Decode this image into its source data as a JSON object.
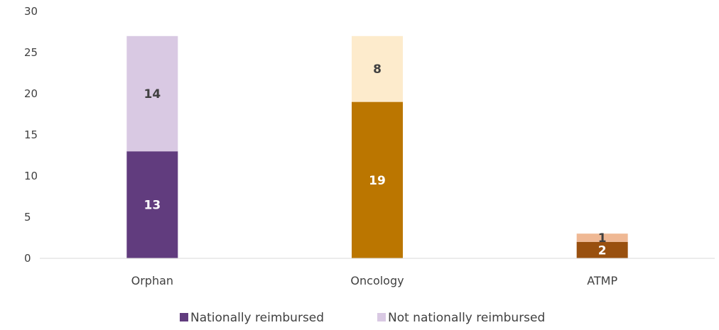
{
  "chart_data": {
    "type": "bar",
    "stacked": true,
    "categories": [
      "Orphan",
      "Oncology",
      "ATMP"
    ],
    "series": [
      {
        "name": "Nationally reimbursed",
        "values": [
          13,
          19,
          2
        ],
        "colors": [
          "#613C7E",
          "#BB7600",
          "#99500F"
        ],
        "label_colors": [
          "#ffffff",
          "#ffffff",
          "#ffffff"
        ]
      },
      {
        "name": "Not nationally reimbursed",
        "values": [
          14,
          8,
          1
        ],
        "colors": [
          "#D9C9E3",
          "#FDEBCC",
          "#EFB894"
        ],
        "label_colors": [
          "#404040",
          "#404040",
          "#404040"
        ]
      }
    ],
    "legend_swatch_colors": [
      "#613C7E",
      "#D9C9E3"
    ],
    "ylim": [
      0,
      30
    ],
    "yticks": [
      0,
      5,
      10,
      15,
      20,
      25,
      30
    ],
    "ytick_labels": [
      "0",
      "5",
      "10",
      "15",
      "20",
      "25",
      "30"
    ],
    "title": "",
    "xlabel": "",
    "ylabel": "",
    "grid": false,
    "legend_position": "bottom"
  }
}
